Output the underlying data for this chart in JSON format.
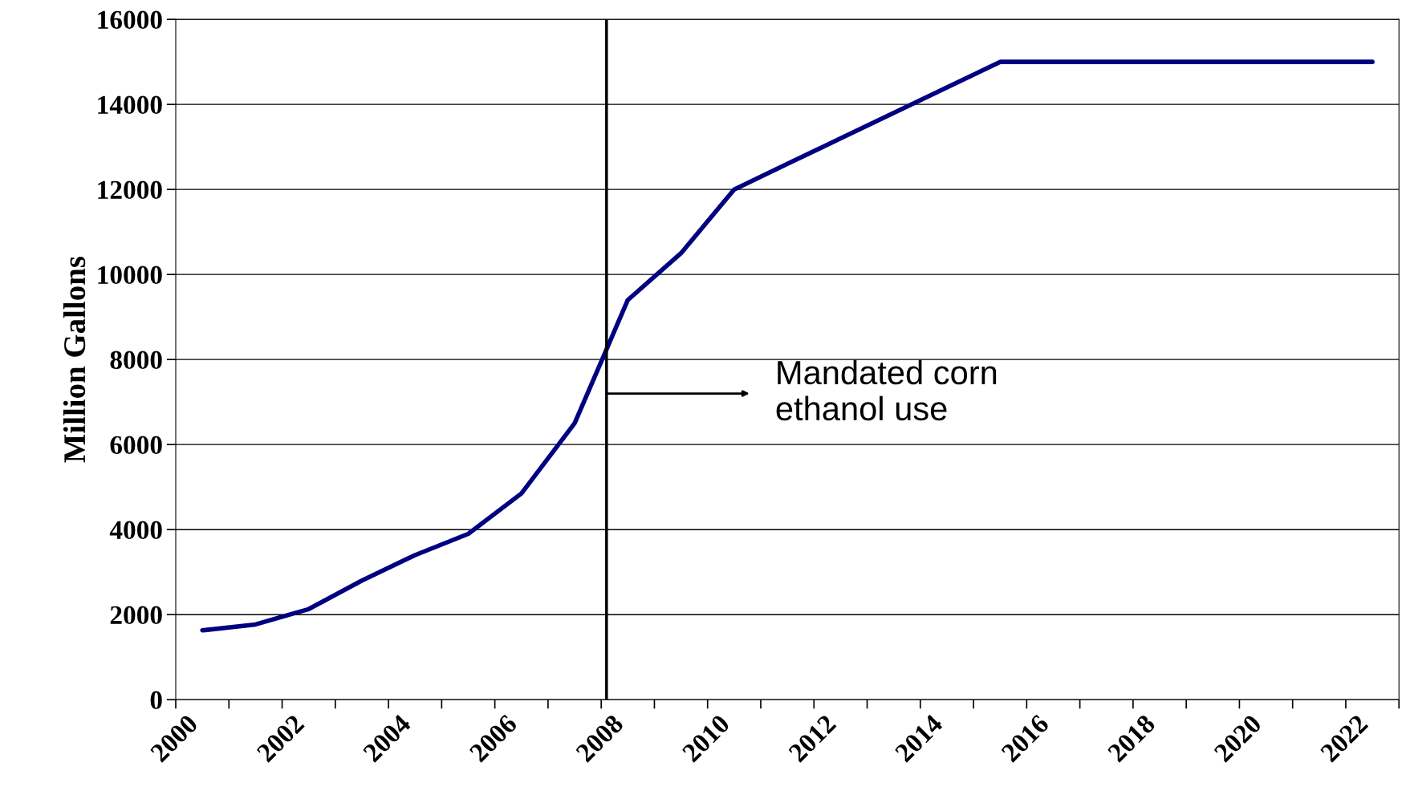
{
  "chart_data": {
    "type": "line",
    "ylabel": "Million Gallons",
    "x": [
      2000.5,
      2001.5,
      2002.5,
      2003.5,
      2004.5,
      2005.5,
      2006.5,
      2007.5,
      2008.5,
      2009.5,
      2010.5,
      2011.5,
      2012.5,
      2013.5,
      2014.5,
      2015.5,
      2016.5,
      2017.5,
      2018.5,
      2019.5,
      2020.5,
      2021.5,
      2022.5
    ],
    "series": [
      {
        "color": "#000080",
        "values": [
          1630,
          1770,
          2130,
          2800,
          3400,
          3900,
          4850,
          6500,
          9400,
          10500,
          12000,
          12600,
          13200,
          13800,
          14400,
          15000,
          15000,
          15000,
          15000,
          15000,
          15000,
          15000,
          15000
        ]
      }
    ],
    "xlim": [
      2000,
      2023
    ],
    "xticks": [
      2000,
      {
        "value": 2001,
        "label": null
      },
      2002,
      {
        "value": 2003,
        "label": null
      },
      2004,
      {
        "value": 2005,
        "label": null
      },
      2006,
      {
        "value": 2007,
        "label": null
      },
      2008,
      {
        "value": 2009,
        "label": null
      },
      2010,
      {
        "value": 2011,
        "label": null
      },
      2012,
      {
        "value": 2013,
        "label": null
      },
      2014,
      {
        "value": 2015,
        "label": null
      },
      2016,
      {
        "value": 2017,
        "label": null
      },
      2018,
      {
        "value": 2019,
        "label": null
      },
      2020,
      {
        "value": 2021,
        "label": null
      },
      2022,
      {
        "value": 2023,
        "label": null
      }
    ],
    "ylim": [
      0,
      16000
    ],
    "yticks": [
      0,
      2000,
      4000,
      6000,
      8000,
      10000,
      12000,
      14000,
      16000
    ],
    "grid": "y",
    "marker": "none",
    "line_style": "solid",
    "ref_lines": [
      {
        "axis": "x",
        "value": 2008.1,
        "color": "#000000"
      }
    ],
    "annotations": [
      "Mandated corn\nethanol use"
    ]
  }
}
